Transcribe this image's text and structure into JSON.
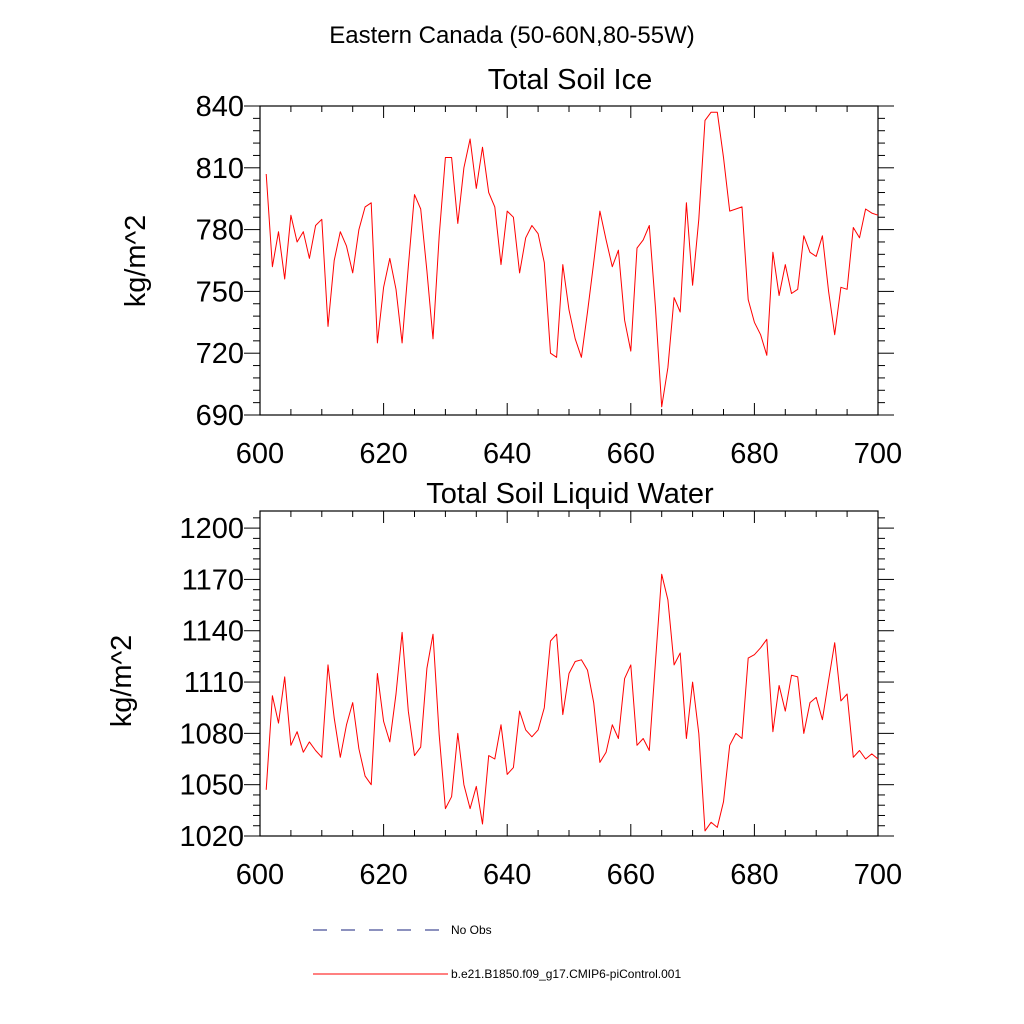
{
  "figure_title": "Eastern Canada (50-60N,80-55W)",
  "colors": {
    "series": "#ff0000",
    "obs": "#1a237e",
    "axes": "#000000"
  },
  "legend": [
    {
      "label": "No Obs",
      "style": "dashed",
      "color": "#1a237e"
    },
    {
      "label": "b.e21.B1850.f09_g17.CMIP6-piControl.001",
      "style": "solid",
      "color": "#ff0000"
    }
  ],
  "chart_data": [
    {
      "type": "line",
      "title": "Total Soil Ice",
      "xlabel": "",
      "ylabel": "kg/m^2",
      "xlim": [
        600,
        700
      ],
      "ylim": [
        690,
        840
      ],
      "xticks": [
        600,
        620,
        640,
        660,
        680,
        700
      ],
      "yticks": [
        690,
        720,
        750,
        780,
        810,
        840
      ],
      "grid": false,
      "series": [
        {
          "x": [
            601,
            602,
            603,
            604,
            605,
            606,
            607,
            608,
            609,
            610,
            611,
            612,
            613,
            614,
            615,
            616,
            617,
            618,
            619,
            620,
            621,
            622,
            623,
            624,
            625,
            626,
            627,
            628,
            629,
            630,
            631,
            632,
            633,
            634,
            635,
            636,
            637,
            638,
            639,
            640,
            641,
            642,
            643,
            644,
            645,
            646,
            647,
            648,
            649,
            650,
            651,
            652,
            653,
            654,
            655,
            656,
            657,
            658,
            659,
            660,
            661,
            662,
            663,
            664,
            665,
            666,
            667,
            668,
            669,
            670,
            671,
            672,
            673,
            674,
            675,
            676,
            677,
            678,
            679,
            680,
            681,
            682,
            683,
            684,
            685,
            686,
            687,
            688,
            689,
            690,
            691,
            692,
            693,
            694,
            695,
            696,
            697,
            698,
            699,
            700
          ],
          "values": [
            807,
            762,
            779,
            756,
            787,
            774,
            779,
            766,
            782,
            785,
            733,
            765,
            779,
            772,
            759,
            780,
            791,
            793,
            725,
            752,
            766,
            751,
            725,
            762,
            797,
            790,
            760,
            727,
            777,
            815,
            815,
            783,
            810,
            824,
            800,
            820,
            798,
            791,
            763,
            789,
            786,
            759,
            776,
            782,
            778,
            764,
            720,
            718,
            763,
            741,
            727,
            718,
            740,
            764,
            789,
            775,
            762,
            770,
            736,
            721,
            771,
            775,
            782,
            742,
            694,
            713,
            747,
            740,
            793,
            753,
            785,
            833,
            837,
            837,
            815,
            789,
            790,
            791,
            746,
            735,
            729,
            719,
            769,
            748,
            763,
            749,
            751,
            777,
            769,
            767,
            777,
            750,
            729,
            752,
            751,
            781,
            776,
            790,
            788,
            787
          ]
        }
      ]
    },
    {
      "type": "line",
      "title": "Total Soil Liquid Water",
      "xlabel": "",
      "ylabel": "kg/m^2",
      "xlim": [
        600,
        700
      ],
      "ylim": [
        1020,
        1210
      ],
      "xticks": [
        600,
        620,
        640,
        660,
        680,
        700
      ],
      "yticks": [
        1020,
        1050,
        1080,
        1110,
        1140,
        1170,
        1200
      ],
      "grid": false,
      "series": [
        {
          "x": [
            601,
            602,
            603,
            604,
            605,
            606,
            607,
            608,
            609,
            610,
            611,
            612,
            613,
            614,
            615,
            616,
            617,
            618,
            619,
            620,
            621,
            622,
            623,
            624,
            625,
            626,
            627,
            628,
            629,
            630,
            631,
            632,
            633,
            634,
            635,
            636,
            637,
            638,
            639,
            640,
            641,
            642,
            643,
            644,
            645,
            646,
            647,
            648,
            649,
            650,
            651,
            652,
            653,
            654,
            655,
            656,
            657,
            658,
            659,
            660,
            661,
            662,
            663,
            664,
            665,
            666,
            667,
            668,
            669,
            670,
            671,
            672,
            673,
            674,
            675,
            676,
            677,
            678,
            679,
            680,
            681,
            682,
            683,
            684,
            685,
            686,
            687,
            688,
            689,
            690,
            691,
            692,
            693,
            694,
            695,
            696,
            697,
            698,
            699,
            700
          ],
          "values": [
            1047,
            1102,
            1086,
            1113,
            1073,
            1081,
            1069,
            1075,
            1070,
            1066,
            1120,
            1089,
            1066,
            1085,
            1098,
            1071,
            1055,
            1050,
            1115,
            1087,
            1075,
            1103,
            1139,
            1093,
            1067,
            1072,
            1118,
            1138,
            1079,
            1036,
            1043,
            1080,
            1050,
            1036,
            1049,
            1027,
            1067,
            1065,
            1085,
            1056,
            1060,
            1093,
            1082,
            1078,
            1082,
            1095,
            1134,
            1138,
            1091,
            1115,
            1122,
            1123,
            1117,
            1098,
            1063,
            1069,
            1085,
            1077,
            1112,
            1120,
            1073,
            1077,
            1070,
            1122,
            1173,
            1158,
            1120,
            1127,
            1077,
            1110,
            1080,
            1023,
            1028,
            1025,
            1040,
            1073,
            1080,
            1077,
            1124,
            1126,
            1130,
            1135,
            1081,
            1108,
            1093,
            1114,
            1113,
            1080,
            1098,
            1101,
            1088,
            1111,
            1133,
            1099,
            1103,
            1066,
            1070,
            1065,
            1068,
            1065
          ]
        }
      ]
    }
  ]
}
